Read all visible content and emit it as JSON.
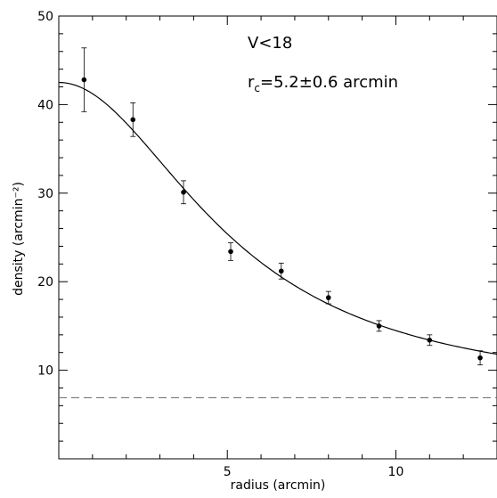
{
  "chart_data": {
    "type": "scatter",
    "title": "",
    "xlabel": "radius (arcmin)",
    "ylabel": "density (arcmin⁻²)",
    "xlim": [
      0,
      13
    ],
    "ylim": [
      0,
      50
    ],
    "x_ticks": [
      5,
      10
    ],
    "y_ticks": [
      10,
      20,
      30,
      40,
      50
    ],
    "annotations": {
      "sample": "V<18",
      "core_radius": {
        "symbol": "r",
        "subscript": "c",
        "text": "=5.2±0.6 arcmin"
      }
    },
    "series": [
      {
        "points": [
          {
            "x": 0.75,
            "y": 42.8,
            "err": 3.6
          },
          {
            "x": 2.2,
            "y": 38.3,
            "err": 1.9
          },
          {
            "x": 3.7,
            "y": 30.1,
            "err": 1.3
          },
          {
            "x": 5.1,
            "y": 23.4,
            "err": 1.0
          },
          {
            "x": 6.6,
            "y": 21.2,
            "err": 0.9
          },
          {
            "x": 8.0,
            "y": 18.2,
            "err": 0.7
          },
          {
            "x": 9.5,
            "y": 15.0,
            "err": 0.6
          },
          {
            "x": 11.0,
            "y": 13.4,
            "err": 0.6
          },
          {
            "x": 12.5,
            "y": 11.4,
            "err": 0.8
          }
        ]
      }
    ],
    "fit": {
      "model": "king",
      "background": 6.9,
      "core_radius": 5.2,
      "central_density": 35.6
    },
    "background_line": {
      "y": 6.9,
      "style": "dashed"
    },
    "colors": {
      "axis": "#000000",
      "points": "#000000",
      "fit": "#000000",
      "background_line": "#666666"
    }
  }
}
